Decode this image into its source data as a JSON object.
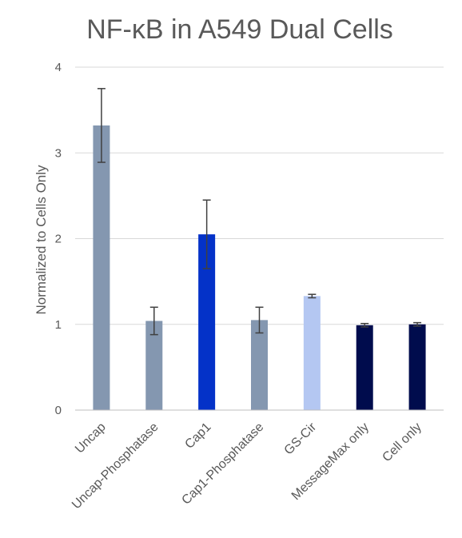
{
  "chart_data": {
    "type": "bar",
    "title": "NF-κB in A549 Dual Cells",
    "xlabel": "",
    "ylabel": "Normalized to Cells Only",
    "ylim": [
      0,
      4
    ],
    "yticks": [
      0,
      1,
      2,
      3,
      4
    ],
    "grid": true,
    "legend": "none",
    "categories": [
      "Uncap",
      "Uncap-Phosphatase",
      "Cap1",
      "Cap1-Phosphatase",
      "GS-Cir",
      "MessageMax only",
      "Cell only"
    ],
    "values": [
      3.32,
      1.04,
      2.05,
      1.05,
      1.33,
      0.99,
      1.0
    ],
    "errors": [
      0.43,
      0.16,
      0.4,
      0.15,
      0.02,
      0.02,
      0.02
    ],
    "colors": [
      "#8497b0",
      "#8497b0",
      "#0432c8",
      "#8497b0",
      "#b4c7f2",
      "#000c4d",
      "#000c4d"
    ]
  }
}
